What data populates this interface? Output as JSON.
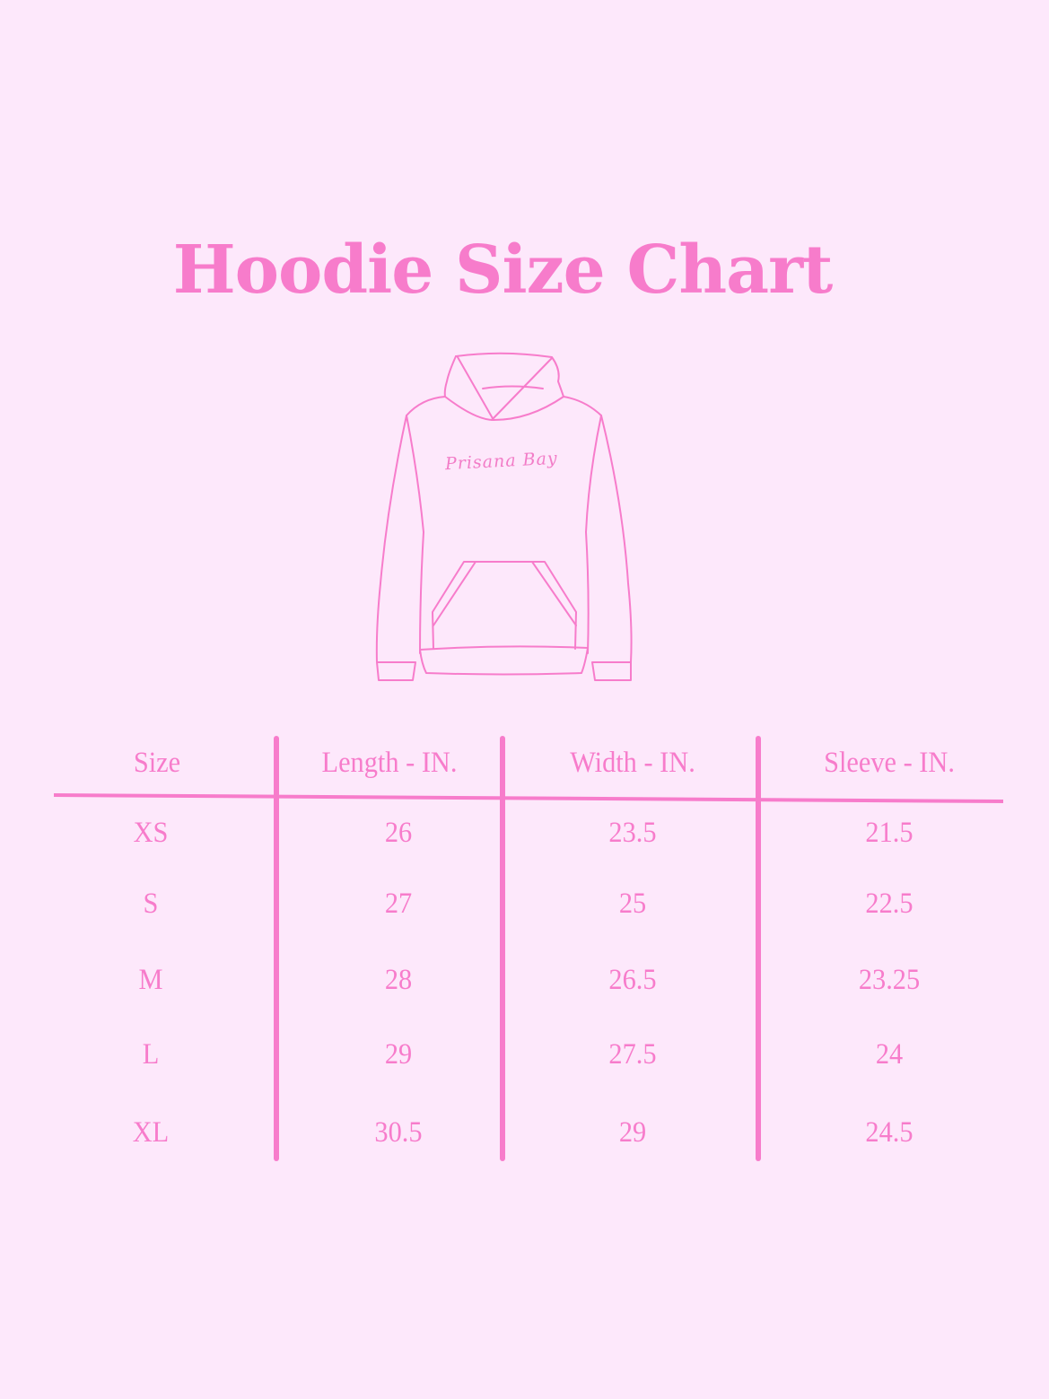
{
  "title": "Hoodie Size Chart",
  "logo_text": "Prisana Bay",
  "colors": {
    "background": "#fde8fb",
    "accent": "#f77ccb"
  },
  "table": {
    "headers": [
      "Size",
      "Length - IN.",
      "Width - IN.",
      "Sleeve - IN."
    ],
    "rows": [
      [
        "XS",
        "26",
        "23.5",
        "21.5"
      ],
      [
        "S",
        "27",
        "25",
        "22.5"
      ],
      [
        "M",
        "28",
        "26.5",
        "23.25"
      ],
      [
        "L",
        "29",
        "27.5",
        "24"
      ],
      [
        "XL",
        "30.5",
        "29",
        "24.5"
      ]
    ]
  }
}
